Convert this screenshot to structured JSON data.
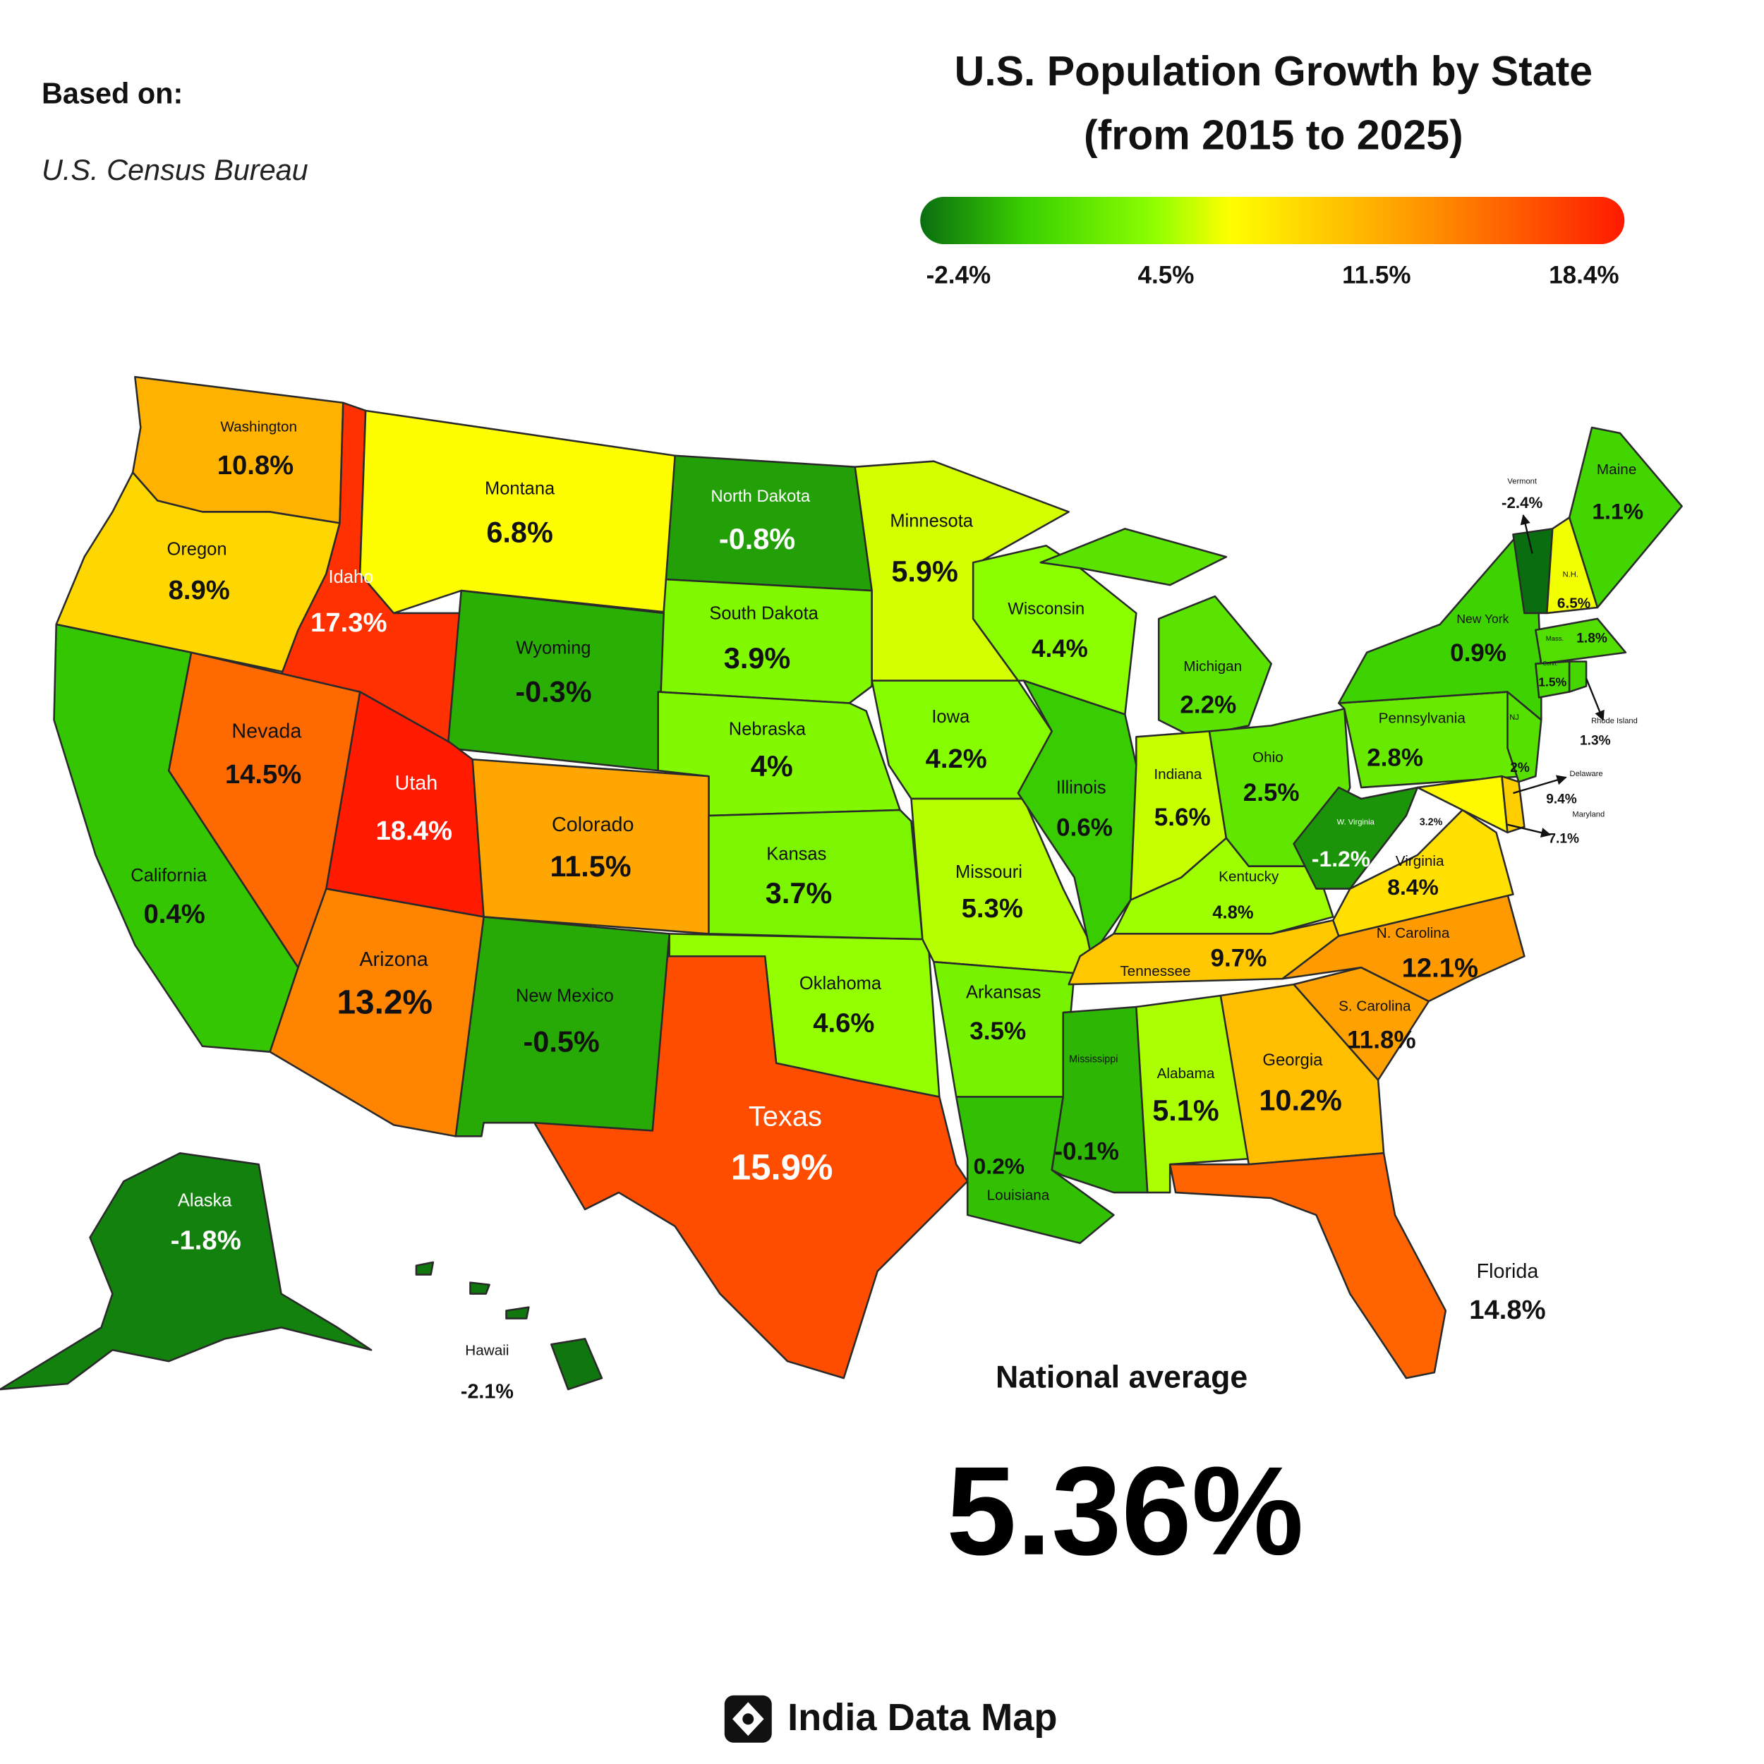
{
  "header": {
    "source_heading": "Based on:",
    "source": "U.S. Census Bureau",
    "title": [
      "U.S. Population Growth by State",
      "(from 2015 to 2025)"
    ]
  },
  "legend": {
    "colors": [
      "#0a6e10",
      "#3ad000",
      "#8cff00",
      "#ffff00",
      "#ff9a00",
      "#ff1a00"
    ],
    "ticks": [
      {
        "value": -2.4,
        "label": "-2.4%"
      },
      {
        "value": 4.5,
        "label": "4.5%"
      },
      {
        "value": 11.5,
        "label": "11.5%"
      },
      {
        "value": 18.4,
        "label": "18.4%"
      }
    ]
  },
  "states": [
    {
      "name": "Washington",
      "value": 10.8,
      "value_label": "10.8%"
    },
    {
      "name": "Oregon",
      "value": 8.9,
      "value_label": "8.9%"
    },
    {
      "name": "Idaho",
      "value": 17.3,
      "value_label": "17.3%"
    },
    {
      "name": "Montana",
      "value": 6.8,
      "value_label": "6.8%"
    },
    {
      "name": "North Dakota",
      "value": -0.8,
      "value_label": "-0.8%"
    },
    {
      "name": "South Dakota",
      "value": 3.9,
      "value_label": "3.9%"
    },
    {
      "name": "Wyoming",
      "value": -0.3,
      "value_label": "-0.3%"
    },
    {
      "name": "Nebraska",
      "value": 4,
      "value_label": "4%"
    },
    {
      "name": "Nevada",
      "value": 14.5,
      "value_label": "14.5%"
    },
    {
      "name": "California",
      "value": 0.4,
      "value_label": "0.4%"
    },
    {
      "name": "Utah",
      "value": 18.4,
      "value_label": "18.4%"
    },
    {
      "name": "Colorado",
      "value": 11.5,
      "value_label": "11.5%"
    },
    {
      "name": "Kansas",
      "value": 3.7,
      "value_label": "3.7%"
    },
    {
      "name": "Oklahoma",
      "value": 4.6,
      "value_label": "4.6%"
    },
    {
      "name": "Texas",
      "value": 15.9,
      "value_label": "15.9%"
    },
    {
      "name": "New Mexico",
      "value": -0.5,
      "value_label": "-0.5%"
    },
    {
      "name": "Arizona",
      "value": 13.2,
      "value_label": "13.2%"
    },
    {
      "name": "Minnesota",
      "value": 5.9,
      "value_label": "5.9%"
    },
    {
      "name": "Iowa",
      "value": 4.2,
      "value_label": "4.2%"
    },
    {
      "name": "Missouri",
      "value": 5.3,
      "value_label": "5.3%"
    },
    {
      "name": "Arkansas",
      "value": 3.5,
      "value_label": "3.5%"
    },
    {
      "name": "Louisiana",
      "value": 0.2,
      "value_label": "0.2%"
    },
    {
      "name": "Wisconsin",
      "value": 4.4,
      "value_label": "4.4%"
    },
    {
      "name": "Illinois",
      "value": 0.6,
      "value_label": "0.6%"
    },
    {
      "name": "Michigan",
      "value": 2.2,
      "value_label": "2.2%"
    },
    {
      "name": "Indiana",
      "value": 5.6,
      "value_label": "5.6%"
    },
    {
      "name": "Ohio",
      "value": 2.5,
      "value_label": "2.5%"
    },
    {
      "name": "Kentucky",
      "value": 4.8,
      "value_label": "4.8%"
    },
    {
      "name": "Tennessee",
      "value": 9.7,
      "value_label": "9.7%"
    },
    {
      "name": "Mississippi",
      "value": -0.1,
      "value_label": "-0.1%"
    },
    {
      "name": "Alabama",
      "value": 5.1,
      "value_label": "5.1%"
    },
    {
      "name": "Georgia",
      "value": 10.2,
      "value_label": "10.2%"
    },
    {
      "name": "Florida",
      "value": 14.8,
      "value_label": "14.8%"
    },
    {
      "name": "S. Carolina",
      "value": 11.8,
      "value_label": "11.8%"
    },
    {
      "name": "N. Carolina",
      "value": 12.1,
      "value_label": "12.1%"
    },
    {
      "name": "Virginia",
      "value": 8.4,
      "value_label": "8.4%"
    },
    {
      "name": "W. Virginia",
      "value": -1.2,
      "value_label": "-1.2%"
    },
    {
      "name": "Pennsylvania",
      "value": 2.8,
      "value_label": "2.8%"
    },
    {
      "name": "New York",
      "value": 0.9,
      "value_label": "0.9%"
    },
    {
      "name": "NJ",
      "value": 2,
      "value_label": "2%"
    },
    {
      "name": "Maryland",
      "value": 7.1,
      "value_label": "7.1%"
    },
    {
      "name": "Delaware",
      "value": 9.4,
      "value_label": "9.4%"
    },
    {
      "name": "Vermont",
      "value": -2.4,
      "value_label": "-2.4%"
    },
    {
      "name": "N.H.",
      "value": 6.5,
      "value_label": "6.5%"
    },
    {
      "name": "Maine",
      "value": 1.1,
      "value_label": "1.1%"
    },
    {
      "name": "Mass.",
      "value": 1.8,
      "value_label": "1.8%"
    },
    {
      "name": "Conn.",
      "value": 1.5,
      "value_label": "1.5%"
    },
    {
      "name": "Rhode Island",
      "value": 1.3,
      "value_label": "1.3%"
    },
    {
      "name": "Alaska",
      "value": -1.8,
      "value_label": "-1.8%"
    },
    {
      "name": "Hawaii",
      "value": -2.1,
      "value_label": "-2.1%"
    }
  ],
  "map_labels": [
    "3.2%"
  ],
  "national_average": {
    "label": "National average",
    "value_label": "5.36%"
  },
  "footer": {
    "brand": "India Data Map"
  }
}
